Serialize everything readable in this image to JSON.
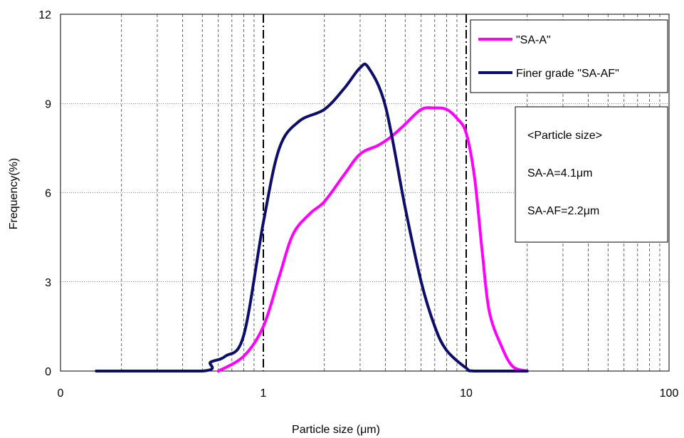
{
  "chart_data": {
    "type": "line",
    "xscale": "log",
    "xlabel": "Particle size (μm)",
    "ylabel": "Frequency(%)",
    "xlim": [
      0.1,
      100
    ],
    "ylim": [
      0,
      12
    ],
    "x_tick_labels": [
      "0",
      "1",
      "10",
      "100"
    ],
    "y_ticks": [
      0,
      3,
      6,
      9,
      12
    ],
    "y_tick_labels": [
      "0",
      "3",
      "6",
      "9",
      "12"
    ],
    "grid": true,
    "reference_lines_x": [
      1,
      10
    ],
    "legend_position": "top-right",
    "series": [
      {
        "name": "\"SA-A\"",
        "color": "#ff00ff",
        "points": [
          [
            0.6,
            0
          ],
          [
            0.8,
            0.5
          ],
          [
            1.0,
            1.5
          ],
          [
            1.2,
            3.2
          ],
          [
            1.4,
            4.6
          ],
          [
            1.7,
            5.3
          ],
          [
            2.0,
            5.7
          ],
          [
            2.5,
            6.6
          ],
          [
            3.0,
            7.3
          ],
          [
            3.7,
            7.6
          ],
          [
            4.3,
            7.9
          ],
          [
            5.0,
            8.3
          ],
          [
            6.0,
            8.8
          ],
          [
            7.0,
            8.85
          ],
          [
            8.0,
            8.8
          ],
          [
            9.0,
            8.5
          ],
          [
            10.0,
            8.0
          ],
          [
            11.0,
            6.5
          ],
          [
            12.0,
            4.0
          ],
          [
            13.0,
            2.0
          ],
          [
            15.0,
            0.8
          ],
          [
            17.0,
            0.15
          ],
          [
            20.0,
            0
          ]
        ]
      },
      {
        "name": "Finer grade \"SA-AF\"",
        "color": "#0d0d6b",
        "points": [
          [
            0.15,
            0
          ],
          [
            0.5,
            0
          ],
          [
            0.55,
            0.3
          ],
          [
            0.65,
            0.5
          ],
          [
            0.8,
            1.2
          ],
          [
            1.0,
            5.0
          ],
          [
            1.2,
            7.5
          ],
          [
            1.5,
            8.4
          ],
          [
            2.0,
            8.8
          ],
          [
            2.5,
            9.5
          ],
          [
            3.0,
            10.2
          ],
          [
            3.3,
            10.2
          ],
          [
            4.0,
            8.9
          ],
          [
            5.0,
            5.5
          ],
          [
            6.0,
            3.0
          ],
          [
            7.0,
            1.5
          ],
          [
            8.0,
            0.7
          ],
          [
            10.0,
            0.1
          ],
          [
            11.0,
            0
          ],
          [
            20.0,
            0
          ]
        ]
      }
    ],
    "annotation": {
      "heading": "<Particle size>",
      "lines": [
        "SA-A=4.1μm",
        "SA-AF=2.2μm"
      ]
    }
  },
  "colors": {
    "grid": "#000000",
    "frame": "#000000",
    "background": "#ffffff"
  }
}
